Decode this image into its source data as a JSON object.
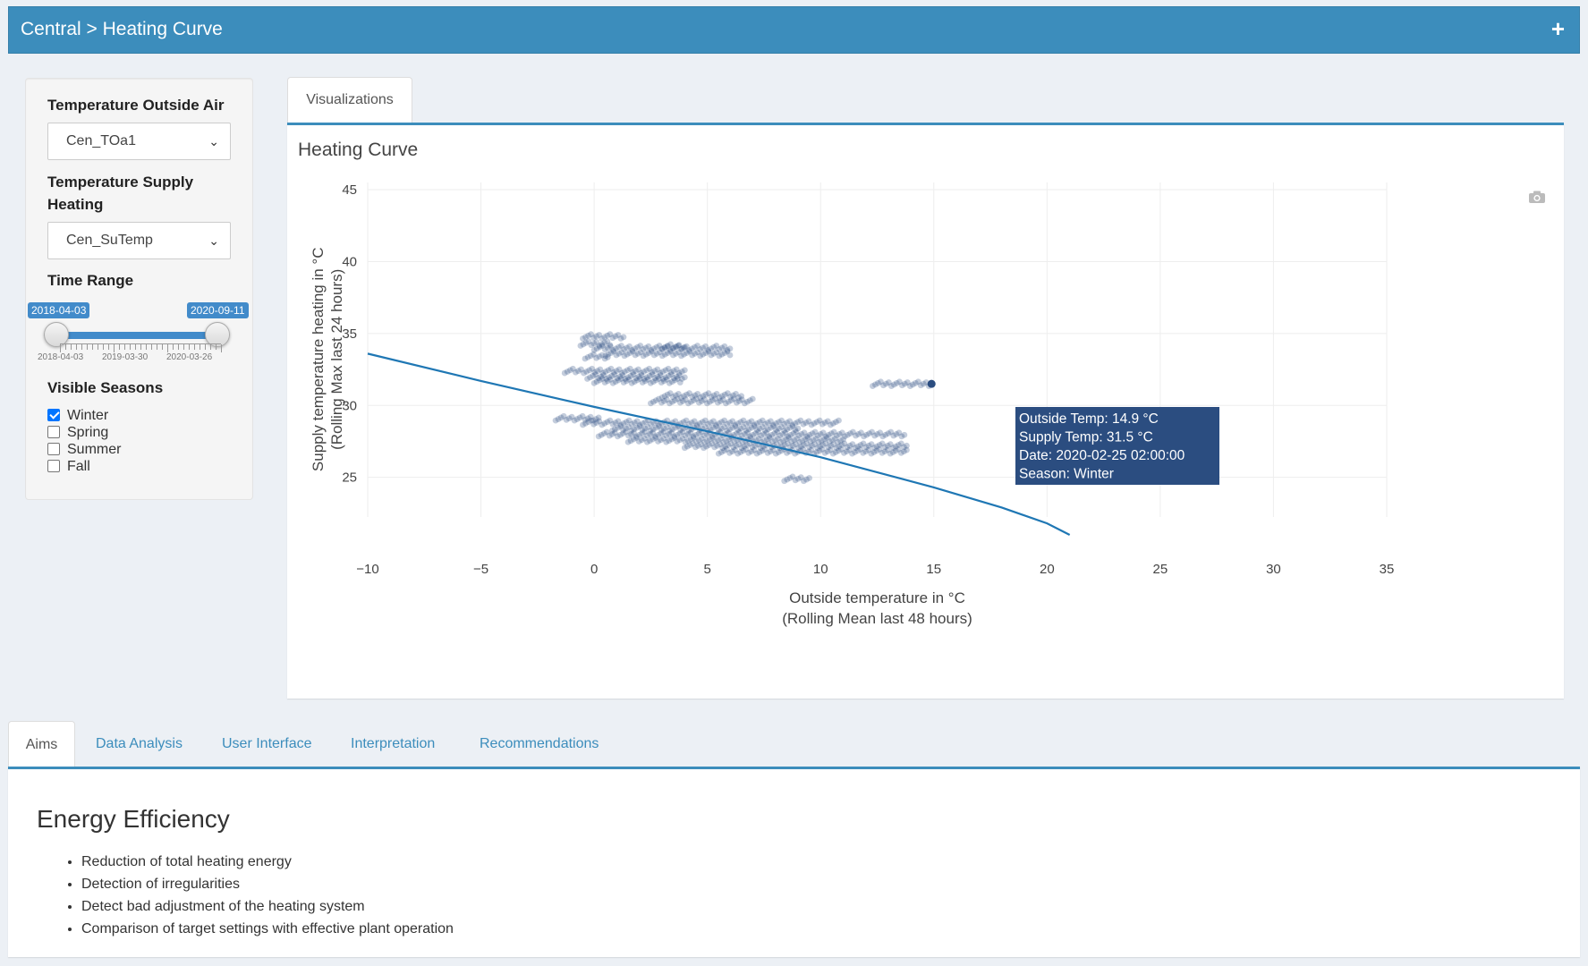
{
  "header": {
    "breadcrumb": "Central > Heating Curve",
    "plus_label": "+"
  },
  "sidebar": {
    "outside_air_label": "Temperature Outside Air",
    "outside_air_value": "Cen_TOa1",
    "supply_label_line1": "Temperature Supply",
    "supply_label_line2": "Heating",
    "supply_value": "Cen_SuTemp",
    "time_range_label": "Time Range",
    "time_range_from": "2018-04-03",
    "time_range_to": "2020-09-11",
    "slider_tick_labels": [
      "2018-04-03",
      "2019-03-30",
      "2020-03-26"
    ],
    "seasons_label": "Visible Seasons",
    "seasons": [
      {
        "label": "Winter",
        "checked": true
      },
      {
        "label": "Spring",
        "checked": false
      },
      {
        "label": "Summer",
        "checked": false
      },
      {
        "label": "Fall",
        "checked": false
      }
    ]
  },
  "viz_tab_label": "Visualizations",
  "panel_title": "Heating Curve",
  "tooltip": {
    "line1": "Outside Temp:   14.9 °C",
    "line2": "Supply Temp:  31.5 °C",
    "line3": "Date:       2020-02-25 02:00:00",
    "line4": "Season:  Winter"
  },
  "chart_data": {
    "type": "scatter",
    "xlabel_line1": "Outside temperature in °C",
    "xlabel_line2": "(Rolling Mean last 48 hours)",
    "ylabel_line1": "Supply temperature heating in °C",
    "ylabel_line2": "(Rolling Max last 24 hours)",
    "xlim": [
      -10,
      35
    ],
    "ylim": [
      21,
      45.5
    ],
    "xticks": [
      -10,
      -5,
      0,
      5,
      10,
      15,
      20,
      25,
      30,
      35
    ],
    "xtick_labels": [
      "−10",
      "−5",
      "0",
      "5",
      "10",
      "15",
      "20",
      "25",
      "30",
      "35"
    ],
    "yticks": [
      25,
      30,
      35,
      40,
      45
    ],
    "ytick_labels": [
      "25",
      "30",
      "35",
      "40",
      "45"
    ],
    "grid": true,
    "curve": {
      "name": "Heating curve",
      "color": "#1f77b4",
      "x": [
        -10,
        -5,
        0,
        5,
        10,
        15,
        18,
        20,
        21
      ],
      "y": [
        33.6,
        31.7,
        29.9,
        28.2,
        26.4,
        24.3,
        22.9,
        21.8,
        21.0
      ]
    },
    "scatter_color": "#2b4d80",
    "clusters": [
      {
        "x": [
          -0.5,
          1.3
        ],
        "y": [
          34.8,
          34.8
        ]
      },
      {
        "x": [
          -0.6,
          0.7
        ],
        "y": [
          34.3,
          34.3
        ]
      },
      {
        "x": [
          0.0,
          6.0
        ],
        "y": [
          34.0,
          34.0
        ]
      },
      {
        "x": [
          3.0,
          4.0
        ],
        "y": [
          34.1,
          34.1
        ]
      },
      {
        "x": [
          0.5,
          6.0
        ],
        "y": [
          33.6,
          33.6
        ]
      },
      {
        "x": [
          -0.4,
          0.6
        ],
        "y": [
          33.4,
          33.4
        ]
      },
      {
        "x": [
          -1.3,
          4.0
        ],
        "y": [
          32.4,
          32.4
        ]
      },
      {
        "x": [
          -0.3,
          4.0
        ],
        "y": [
          32.0,
          32.0
        ]
      },
      {
        "x": [
          0.0,
          3.8
        ],
        "y": [
          31.7,
          31.7
        ]
      },
      {
        "x": [
          12.3,
          14.9
        ],
        "y": [
          31.5,
          31.5
        ]
      },
      {
        "x": [
          3.0,
          6.5
        ],
        "y": [
          30.7,
          30.7
        ]
      },
      {
        "x": [
          2.5,
          7.0
        ],
        "y": [
          30.3,
          30.3
        ]
      },
      {
        "x": [
          -1.7,
          0.2
        ],
        "y": [
          29.1,
          29.1
        ]
      },
      {
        "x": [
          -0.5,
          10.8
        ],
        "y": [
          28.8,
          28.8
        ]
      },
      {
        "x": [
          0.8,
          9.0
        ],
        "y": [
          28.4,
          28.4
        ]
      },
      {
        "x": [
          0.2,
          13.7
        ],
        "y": [
          28.0,
          28.0
        ]
      },
      {
        "x": [
          1.5,
          11.0
        ],
        "y": [
          27.6,
          27.6
        ]
      },
      {
        "x": [
          4.0,
          13.8
        ],
        "y": [
          27.2,
          27.2
        ]
      },
      {
        "x": [
          5.5,
          13.8
        ],
        "y": [
          26.8,
          26.8
        ]
      },
      {
        "x": [
          8.4,
          9.5
        ],
        "y": [
          24.9,
          24.9
        ]
      }
    ]
  },
  "bottom_tabs": [
    "Aims",
    "Data Analysis",
    "User Interface",
    "Interpretation",
    "Recommendations"
  ],
  "aims": {
    "heading": "Energy Efficiency",
    "items": [
      "Reduction of total heating energy",
      "Detection of irregularities",
      "Detect bad adjustment of the heating system",
      "Comparison of target settings with effective plant operation"
    ]
  }
}
